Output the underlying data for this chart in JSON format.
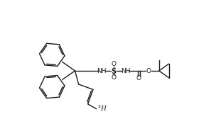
{
  "background_color": "#ffffff",
  "line_color": "#1a1a1a",
  "line_width": 1.0,
  "font_size": 6.5,
  "figsize": [
    2.8,
    1.92
  ],
  "dpi": 100,
  "xlim": [
    0,
    280
  ],
  "ylim": [
    0,
    192
  ]
}
